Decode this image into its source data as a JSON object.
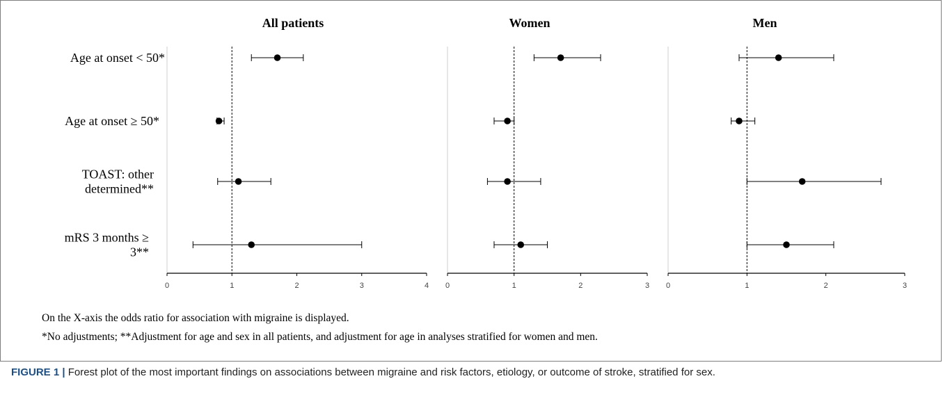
{
  "chart_data": [
    {
      "type": "forest",
      "title": "All patients",
      "xlim": [
        0,
        4
      ],
      "x_ticks": [
        "0",
        "1",
        "2",
        "3",
        "4"
      ],
      "reference_line": 1,
      "rows": [
        {
          "label_lines": [
            "Age at onset < 50*"
          ],
          "or": 1.7,
          "ci": [
            1.3,
            2.1
          ]
        },
        {
          "label_lines": [
            "Age at onset ≥ 50*"
          ],
          "or": 0.8,
          "ci": [
            0.77,
            0.88
          ]
        },
        {
          "label_lines": [
            "TOAST: other",
            "determined**"
          ],
          "or": 1.1,
          "ci": [
            0.78,
            1.6
          ]
        },
        {
          "label_lines": [
            "mRS 3 months ≥",
            "3**"
          ],
          "or": 1.3,
          "ci": [
            0.4,
            3.0
          ]
        }
      ]
    },
    {
      "type": "forest",
      "title": "Women",
      "xlim": [
        0,
        3
      ],
      "x_ticks": [
        "0",
        "1",
        "2",
        "3"
      ],
      "reference_line": 1,
      "rows": [
        {
          "or": 1.7,
          "ci": [
            1.3,
            2.3
          ]
        },
        {
          "or": 0.9,
          "ci": [
            0.7,
            1.0
          ]
        },
        {
          "or": 0.9,
          "ci": [
            0.6,
            1.4
          ]
        },
        {
          "or": 1.1,
          "ci": [
            0.7,
            1.5
          ]
        }
      ]
    },
    {
      "type": "forest",
      "title": "Men",
      "xlim": [
        0,
        3
      ],
      "x_ticks": [
        "0",
        "1",
        "2",
        "3"
      ],
      "reference_line": 1,
      "rows": [
        {
          "or": 1.4,
          "ci": [
            0.9,
            2.1
          ]
        },
        {
          "or": 0.9,
          "ci": [
            0.8,
            1.1
          ]
        },
        {
          "or": 1.7,
          "ci": [
            1.0,
            2.7
          ]
        },
        {
          "or": 1.5,
          "ci": [
            1.0,
            2.1
          ]
        }
      ]
    }
  ],
  "notes": {
    "line1": "On the X-axis the odds ratio for association with migraine is displayed.",
    "line2": "*No adjustments; **Adjustment for age and sex in all patients, and adjustment for age in analyses stratified for women and men."
  },
  "caption": {
    "label": "FIGURE 1 |",
    "text": " Forest plot of the most important findings on associations between migraine and risk factors, etiology, or outcome of stroke, stratified for sex."
  },
  "colors": {
    "caption_label": "#1a4f8a",
    "marker": "#000000"
  }
}
